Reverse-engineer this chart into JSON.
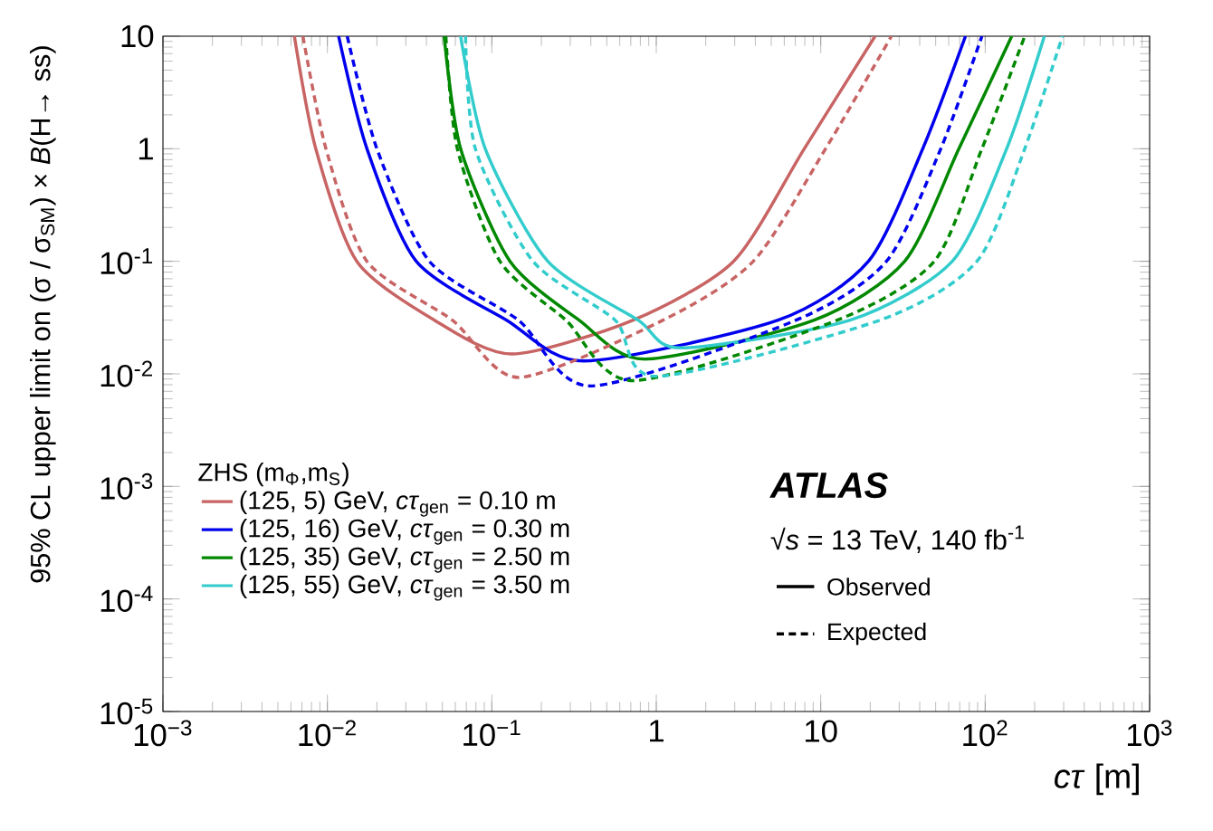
{
  "chart_data": {
    "type": "line",
    "xlabel": "*cτ* [m]",
    "ylabel": "95% CL upper limit on (σ / σ$_{SM}$) × *B*(H→ ss)",
    "legend_title": "ZHS (m$_{Φ}$,m$_{S}$)",
    "log": "xy",
    "xlim": [
      0.001,
      1000
    ],
    "ylim": [
      1e-05,
      10
    ],
    "xticks": [
      {
        "value": 0.001,
        "label": "10$^{−3}$"
      },
      {
        "value": 0.01,
        "label": "10$^{−2}$"
      },
      {
        "value": 0.1,
        "label": "10$^{−1}$"
      },
      1,
      10,
      {
        "value": 100,
        "label": "10$^{2}$"
      },
      {
        "value": 1000,
        "label": "10$^{3}$"
      }
    ],
    "yticks": [
      {
        "value": 1e-05,
        "label": "10$^{-5}$"
      },
      {
        "value": 0.0001,
        "label": "10$^{-4}$"
      },
      {
        "value": 0.001,
        "label": "10$^{-3}$"
      },
      {
        "value": 0.01,
        "label": "10$^{-2}$"
      },
      {
        "value": 0.1,
        "label": "10$^{-1}$"
      },
      1,
      10
    ],
    "legend": "bottom left",
    "grid": false,
    "marker": "none",
    "annotations": [
      "ATLAS",
      "√*s* = 13 TeV, 140 fb$^{-1}$",
      "Observed",
      "Expected"
    ],
    "series": [
      {
        "name": "(125, 5) GeV, *cτ*$_{gen}$ = 0.10 m",
        "color": "#c86464",
        "line_style": "solid",
        "x": [
          0.0063,
          0.0085,
          0.0151,
          0.0447,
          0.132,
          0.724,
          2.95,
          7.94,
          21.4
        ],
        "values": [
          10,
          1,
          0.1,
          0.03,
          0.015,
          0.03,
          0.1,
          1,
          10
        ]
      },
      {
        "name": "(125, 16) GeV, *cτ*$_{gen}$ = 0.30 m",
        "color": "#0000ee",
        "line_style": "solid",
        "x": [
          0.0117,
          0.0174,
          0.0347,
          0.123,
          0.363,
          5.5,
          19.5,
          41.7,
          75.9
        ],
        "values": [
          10,
          1,
          0.1,
          0.03,
          0.013,
          0.03,
          0.1,
          1,
          10
        ]
      },
      {
        "name": "(125, 35) GeV, *cτ*$_{gen}$ = 2.50 m",
        "color": "#008800",
        "line_style": "solid",
        "x": [
          0.0513,
          0.0646,
          0.129,
          0.339,
          0.851,
          9.12,
          32.4,
          69.2,
          145
        ],
        "values": [
          10,
          1,
          0.1,
          0.03,
          0.0135,
          0.03,
          0.1,
          1,
          10
        ]
      },
      {
        "name": "(125, 55) GeV, *cτ*$_{gen}$ = 3.50 m",
        "color": "#33cccc",
        "line_style": "solid",
        "x": [
          0.0646,
          0.0912,
          0.219,
          0.776,
          1.41,
          15.1,
          63.1,
          135,
          229
        ],
        "values": [
          10,
          1,
          0.1,
          0.03,
          0.017,
          0.03,
          0.1,
          1,
          10
        ]
      },
      {
        "color": "#c86464",
        "line_style": "dashed",
        "x": [
          0.0071,
          0.0098,
          0.0174,
          0.0575,
          0.145,
          1.1,
          3.89,
          10.7,
          26.9
        ],
        "values": [
          10,
          1,
          0.1,
          0.03,
          0.0093,
          0.03,
          0.1,
          1,
          10
        ]
      },
      {
        "color": "#0000ee",
        "line_style": "dashed",
        "x": [
          0.0132,
          0.02,
          0.0417,
          0.145,
          0.398,
          7.08,
          25.1,
          53.7,
          95.5
        ],
        "values": [
          10,
          1,
          0.1,
          0.03,
          0.0078,
          0.03,
          0.1,
          1,
          10
        ]
      },
      {
        "color": "#008800",
        "line_style": "dashed",
        "x": [
          0.0525,
          0.0617,
          0.112,
          0.282,
          0.724,
          12.6,
          49.0,
          95.5,
          174
        ],
        "values": [
          10,
          1,
          0.1,
          0.03,
          0.0087,
          0.03,
          0.1,
          1,
          10
        ]
      },
      {
        "color": "#33cccc",
        "line_style": "dashed",
        "x": [
          0.0692,
          0.0794,
          0.178,
          0.562,
          1.0,
          22.9,
          89.1,
          174,
          295
        ],
        "values": [
          10,
          1,
          0.1,
          0.03,
          0.0095,
          0.03,
          0.1,
          1,
          10
        ]
      }
    ]
  }
}
